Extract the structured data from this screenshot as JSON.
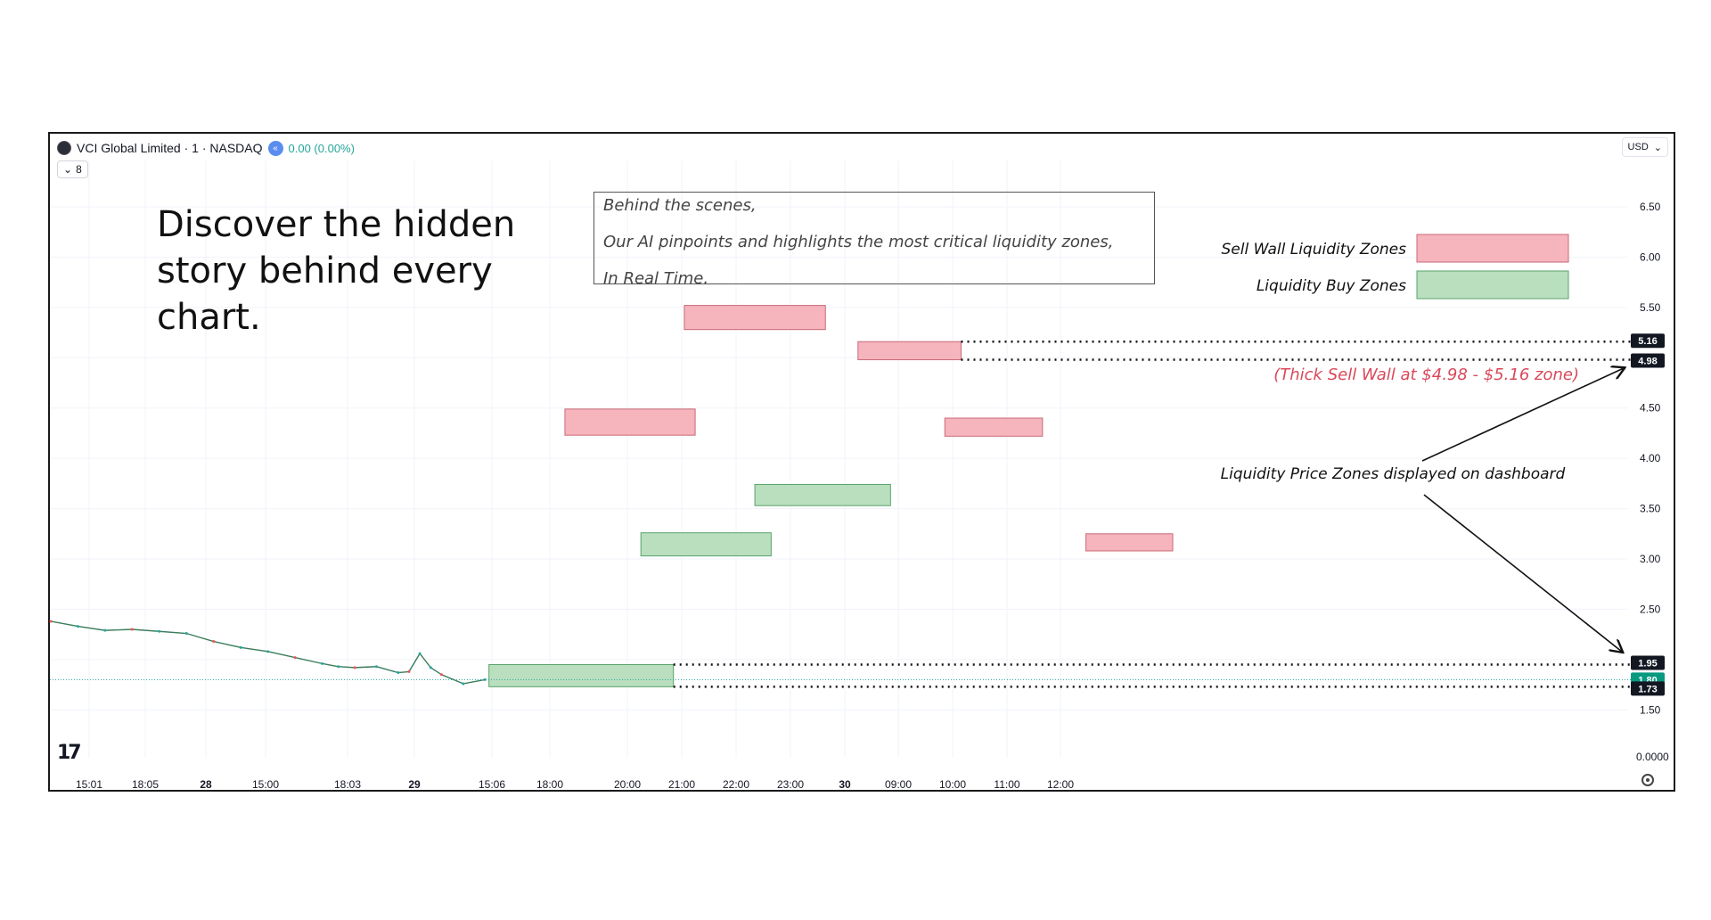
{
  "header": {
    "symbol_title": "VCI Global Limited · 1 · NASDAQ",
    "change": "0.00 (0.00%)",
    "collapse_count": "8",
    "currency": "USD"
  },
  "promo": {
    "text": "Discover the hidden story behind every chart."
  },
  "info_box": {
    "lines": [
      "Behind the scenes,",
      "Our AI pinpoints and highlights the most critical liquidity zones,",
      "In Real Time."
    ]
  },
  "colors": {
    "sell_zone_fill": "#f6b4bc",
    "sell_zone_border": "#c96a77",
    "buy_zone_fill": "#b9dfbf",
    "buy_zone_border": "#5aa36a",
    "sell_annotation": "#d9485a",
    "price_label_bg": "#131722",
    "current_price_bg": "#089981",
    "price_line": "#26a69a"
  },
  "icons": {
    "logo": "company-logo-icon",
    "status": "market-status-icon",
    "tv_logo": "tradingview-logo",
    "settings": "settings-icon",
    "currency_dropdown": "chevron-down-icon"
  },
  "chart_data": {
    "type": "line",
    "title": "VCI Global Limited · 1 · NASDAQ",
    "xlabel": "",
    "ylabel": "",
    "x_ticks": [
      "15:01",
      "18:05",
      "28",
      "15:00",
      "18:03",
      "29",
      "15:06",
      "18:00",
      "20:00",
      "21:00",
      "22:00",
      "23:00",
      "30",
      "09:00",
      "10:00",
      "11:00",
      "12:00"
    ],
    "y_ticks": [
      6.5,
      6.0,
      5.5,
      5.0,
      4.5,
      4.0,
      3.5,
      3.0,
      2.5,
      2.0,
      1.5
    ],
    "y_tick_labels": [
      "6.50",
      "6.00",
      "5.50",
      "5.00",
      "4.50",
      "4.00",
      "3.50",
      "3.00",
      "2.50",
      "2.00",
      "1.50"
    ],
    "volume_label": "0.0000",
    "ylim": [
      1.0,
      6.95
    ],
    "grid": true,
    "series": [
      {
        "x_index": [
          0.0,
          0.5,
          1.0,
          1.5,
          2.0,
          2.5,
          3.0,
          3.5,
          4.0,
          4.5,
          5.0,
          5.3,
          5.6,
          6.0,
          6.4,
          6.6,
          6.8,
          7.0,
          7.2,
          7.6,
          8.0
        ],
        "values": [
          2.38,
          2.33,
          2.29,
          2.3,
          2.28,
          2.26,
          2.18,
          2.12,
          2.08,
          2.02,
          1.96,
          1.93,
          1.92,
          1.93,
          1.87,
          1.88,
          2.06,
          1.92,
          1.85,
          1.76,
          1.8
        ]
      }
    ],
    "zones": [
      {
        "type": "sell",
        "low": 5.28,
        "high": 5.52,
        "x_start": 11.0,
        "x_end": 13.6
      },
      {
        "type": "sell",
        "low": 4.98,
        "high": 5.16,
        "x_start": 14.2,
        "x_end": 16.1
      },
      {
        "type": "sell",
        "low": 4.23,
        "high": 4.49,
        "x_start": 8.8,
        "x_end": 11.2
      },
      {
        "type": "sell",
        "low": 4.22,
        "high": 4.4,
        "x_start": 15.8,
        "x_end": 17.6
      },
      {
        "type": "sell",
        "low": 3.08,
        "high": 3.25,
        "x_start": 18.4,
        "x_end": 20.0
      },
      {
        "type": "buy",
        "low": 3.53,
        "high": 3.74,
        "x_start": 12.3,
        "x_end": 14.8
      },
      {
        "type": "buy",
        "low": 3.03,
        "high": 3.26,
        "x_start": 10.2,
        "x_end": 12.6
      },
      {
        "type": "buy",
        "low": 1.73,
        "high": 1.95,
        "x_start": 7.4,
        "x_end": 10.8
      }
    ],
    "price_labels": [
      "5.16",
      "4.98",
      "1.95",
      "1.80",
      "1.73"
    ],
    "current_price": 1.8,
    "legend": [
      "Sell Wall Liquidity Zones",
      "Liquidity Buy Zones"
    ],
    "annotations": [
      "(Thick Sell Wall at $4.98 - $5.16 zone)",
      "Liquidity Price Zones displayed on dashboard"
    ]
  }
}
